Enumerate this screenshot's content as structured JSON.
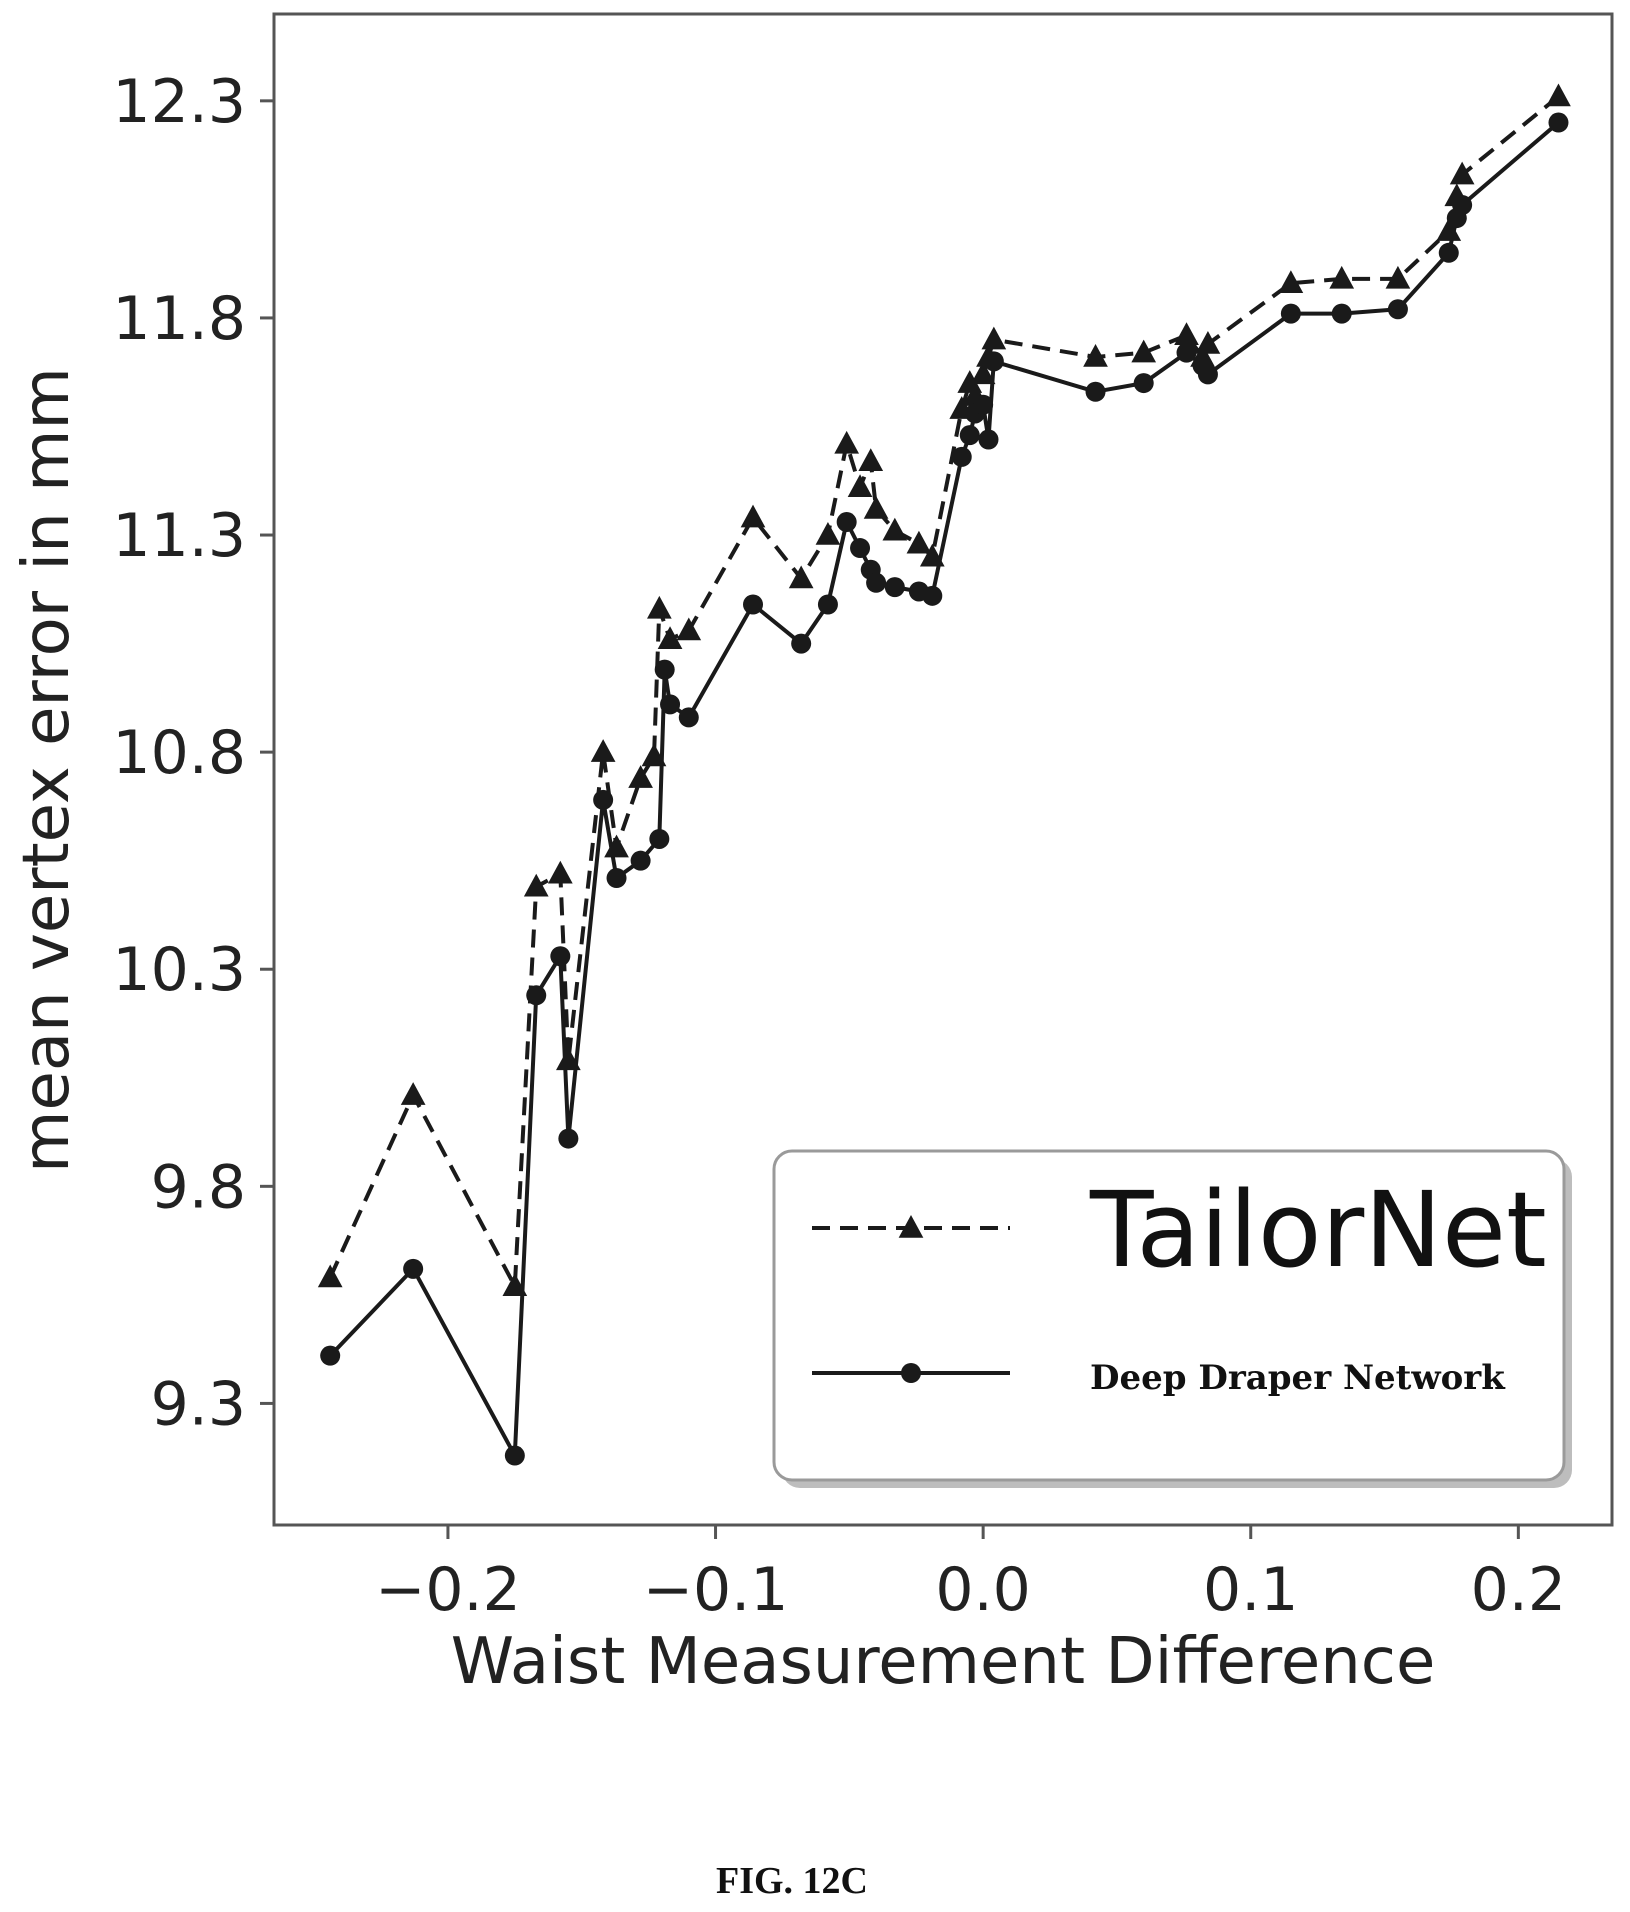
{
  "figure_caption": "FIG. 12C",
  "chart_data": {
    "type": "line",
    "xlabel": "Waist Measurement Difference",
    "ylabel": "mean vertex error in mm",
    "xlim": [
      -0.265,
      0.235
    ],
    "ylim": [
      9.02,
      12.5
    ],
    "x_ticks": [
      {
        "value": -0.2,
        "label": "−0.2"
      },
      {
        "value": -0.1,
        "label": "−0.1"
      },
      {
        "value": 0.0,
        "label": "0.0"
      },
      {
        "value": 0.1,
        "label": "0.1"
      },
      {
        "value": 0.2,
        "label": "0.2"
      }
    ],
    "y_ticks": [
      {
        "value": 9.3,
        "label": "9.3"
      },
      {
        "value": 9.8,
        "label": "9.8"
      },
      {
        "value": 10.3,
        "label": "10.3"
      },
      {
        "value": 10.8,
        "label": "10.8"
      },
      {
        "value": 11.3,
        "label": "11.3"
      },
      {
        "value": 11.8,
        "label": "11.8"
      },
      {
        "value": 12.3,
        "label": "12.3"
      }
    ],
    "grid": false,
    "legend_position": "lower right",
    "series": [
      {
        "name": "TailorNet",
        "line_style": "dashed",
        "marker": "triangle",
        "color": "#1a1a1a",
        "x": [
          -0.244,
          -0.213,
          -0.175,
          -0.167,
          -0.158,
          -0.155,
          -0.142,
          -0.137,
          -0.128,
          -0.123,
          -0.121,
          -0.117,
          -0.11,
          -0.086,
          -0.068,
          -0.058,
          -0.051,
          -0.046,
          -0.042,
          -0.04,
          -0.033,
          -0.024,
          -0.019,
          -0.008,
          -0.005,
          -0.003,
          0.0,
          0.002,
          0.004,
          0.042,
          0.06,
          0.076,
          0.082,
          0.084,
          0.115,
          0.134,
          0.155,
          0.174,
          0.177,
          0.179,
          0.215
        ],
        "values": [
          9.59,
          10.01,
          9.57,
          10.49,
          10.52,
          10.09,
          10.8,
          10.58,
          10.74,
          10.79,
          11.13,
          11.06,
          11.08,
          11.34,
          11.2,
          11.3,
          11.51,
          11.41,
          11.47,
          11.36,
          11.31,
          11.28,
          11.25,
          11.59,
          11.65,
          11.62,
          11.67,
          11.71,
          11.75,
          11.71,
          11.72,
          11.76,
          11.71,
          11.74,
          11.88,
          11.89,
          11.89,
          12.0,
          12.08,
          12.13,
          12.31
        ]
      },
      {
        "name": "Deep Draper Network",
        "line_style": "solid",
        "marker": "circle",
        "color": "#1a1a1a",
        "x": [
          -0.244,
          -0.213,
          -0.175,
          -0.167,
          -0.158,
          -0.155,
          -0.142,
          -0.137,
          -0.128,
          -0.121,
          -0.119,
          -0.117,
          -0.11,
          -0.086,
          -0.068,
          -0.058,
          -0.051,
          -0.046,
          -0.042,
          -0.04,
          -0.033,
          -0.024,
          -0.019,
          -0.008,
          -0.005,
          -0.003,
          0.0,
          0.002,
          0.004,
          0.042,
          0.06,
          0.076,
          0.082,
          0.084,
          0.115,
          0.134,
          0.155,
          0.174,
          0.177,
          0.179,
          0.215
        ],
        "values": [
          9.41,
          9.61,
          9.18,
          10.24,
          10.33,
          9.91,
          10.69,
          10.51,
          10.55,
          10.6,
          10.99,
          10.91,
          10.88,
          11.14,
          11.05,
          11.14,
          11.33,
          11.27,
          11.22,
          11.19,
          11.18,
          11.17,
          11.16,
          11.48,
          11.53,
          11.58,
          11.6,
          11.52,
          11.7,
          11.63,
          11.65,
          11.72,
          11.69,
          11.67,
          11.81,
          11.81,
          11.82,
          11.95,
          12.03,
          12.06,
          12.25
        ]
      }
    ]
  }
}
